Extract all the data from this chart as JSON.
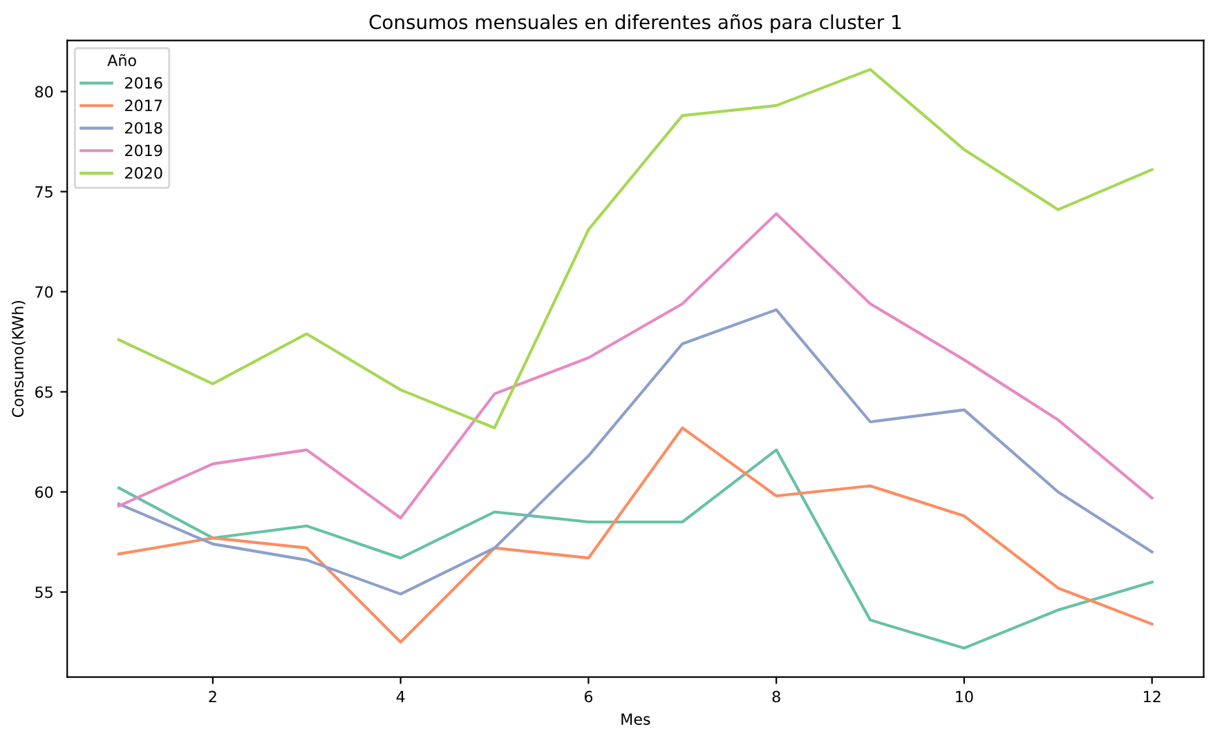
{
  "chart_data": {
    "type": "line",
    "title": "Consumos mensuales en diferentes años para cluster 1",
    "xlabel": "Mes",
    "ylabel": "Consumo(KWh)",
    "legend_title": "Año",
    "x": [
      1,
      2,
      3,
      4,
      5,
      6,
      7,
      8,
      9,
      10,
      11,
      12
    ],
    "series": [
      {
        "name": "2016",
        "color": "#66c2a5",
        "values": [
          60.2,
          57.7,
          58.3,
          56.7,
          59.0,
          58.5,
          58.5,
          62.1,
          53.6,
          52.2,
          54.1,
          55.5
        ]
      },
      {
        "name": "2017",
        "color": "#fc8d62",
        "values": [
          56.9,
          57.7,
          57.2,
          52.5,
          57.2,
          56.7,
          63.2,
          59.8,
          60.3,
          58.8,
          55.2,
          53.4
        ]
      },
      {
        "name": "2018",
        "color": "#8da0cb",
        "values": [
          59.4,
          57.4,
          56.6,
          54.9,
          57.2,
          61.8,
          67.4,
          69.1,
          63.5,
          64.1,
          60.0,
          57.0
        ]
      },
      {
        "name": "2019",
        "color": "#e78ac3",
        "values": [
          59.3,
          61.4,
          62.1,
          58.7,
          64.9,
          66.7,
          69.4,
          73.9,
          69.4,
          66.6,
          63.6,
          59.7
        ]
      },
      {
        "name": "2020",
        "color": "#a6d854",
        "values": [
          67.6,
          65.4,
          67.9,
          65.1,
          63.2,
          73.1,
          78.8,
          79.3,
          81.1,
          77.1,
          74.1,
          76.1
        ]
      }
    ],
    "xlim": [
      0.45,
      12.55
    ],
    "ylim": [
      50.75,
      82.55
    ],
    "xticks": [
      2,
      4,
      6,
      8,
      10,
      12
    ],
    "yticks": [
      55,
      60,
      65,
      70,
      75,
      80
    ],
    "grid": false,
    "legend": "top left",
    "marker": "none",
    "line_style": "solid"
  }
}
